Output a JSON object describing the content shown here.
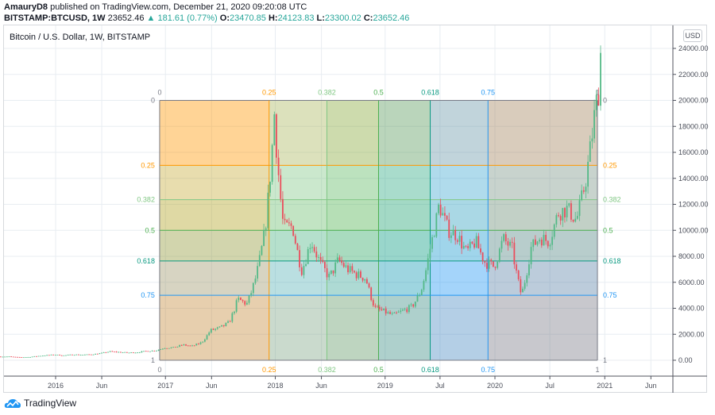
{
  "header": {
    "author": "AmauryD8",
    "published": "published on TradingView.com, December 21, 2020 09:20:08 UTC",
    "symbol": "BITSTAMP:BTCUSD, 1W",
    "last": "23652.46",
    "change": "181.61 (0.77%)",
    "o_label": "O:",
    "o": "23470.85",
    "h_label": "H:",
    "h": "24123.83",
    "l_label": "L:",
    "l": "23300.02",
    "c_label": "C:",
    "c": "23652.46"
  },
  "chart_title": "Bitcoin / U.S. Dollar, 1W, BITSTAMP",
  "currency_button": "USD",
  "brand": "TradingView",
  "colors": {
    "up": "#53b987",
    "down": "#eb4d5c",
    "grid": "#e8edf2"
  },
  "chart_data": {
    "type": "candlestick",
    "title": "Bitcoin / U.S. Dollar, 1W, BITSTAMP",
    "ylim": [
      0,
      24000
    ],
    "y_ticks": [
      "0.00",
      "2000.00",
      "4000.00",
      "6000.00",
      "8000.00",
      "10000.00",
      "12000.00",
      "14000.00",
      "16000.00",
      "18000.00",
      "20000.00",
      "22000.00",
      "24000.00"
    ],
    "x_ticks": [
      {
        "label": "2016",
        "t": 2016.0
      },
      {
        "label": "Jun",
        "t": 2016.42
      },
      {
        "label": "2017",
        "t": 2017.0
      },
      {
        "label": "Jun",
        "t": 2017.42
      },
      {
        "label": "2018",
        "t": 2018.0
      },
      {
        "label": "Jun",
        "t": 2018.42
      },
      {
        "label": "2019",
        "t": 2019.0
      },
      {
        "label": "Jul",
        "t": 2019.5
      },
      {
        "label": "2020",
        "t": 2020.0
      },
      {
        "label": "Jul",
        "t": 2020.5
      },
      {
        "label": "2021",
        "t": 2021.0
      },
      {
        "label": "Jun",
        "t": 2021.42
      }
    ],
    "monthly_closes": [
      [
        "2015-07",
        280
      ],
      [
        "2015-08",
        230
      ],
      [
        "2015-09",
        236
      ],
      [
        "2015-10",
        314
      ],
      [
        "2015-11",
        377
      ],
      [
        "2015-12",
        430
      ],
      [
        "2016-01",
        368
      ],
      [
        "2016-02",
        437
      ],
      [
        "2016-03",
        416
      ],
      [
        "2016-04",
        448
      ],
      [
        "2016-05",
        531
      ],
      [
        "2016-06",
        673
      ],
      [
        "2016-07",
        624
      ],
      [
        "2016-08",
        575
      ],
      [
        "2016-09",
        609
      ],
      [
        "2016-10",
        700
      ],
      [
        "2016-11",
        742
      ],
      [
        "2016-12",
        960
      ],
      [
        "2017-01",
        970
      ],
      [
        "2017-02",
        1190
      ],
      [
        "2017-03",
        1080
      ],
      [
        "2017-04",
        1350
      ],
      [
        "2017-05",
        2300
      ],
      [
        "2017-06",
        2480
      ],
      [
        "2017-07",
        2870
      ],
      [
        "2017-08",
        4700
      ],
      [
        "2017-09",
        4340
      ],
      [
        "2017-10",
        6470
      ],
      [
        "2017-11",
        10200
      ],
      [
        "2017-12",
        19000
      ],
      [
        "2018-01",
        10200
      ],
      [
        "2018-02",
        10300
      ],
      [
        "2018-03",
        6900
      ],
      [
        "2018-04",
        9240
      ],
      [
        "2018-05",
        7500
      ],
      [
        "2018-06",
        6390
      ],
      [
        "2018-07",
        7730
      ],
      [
        "2018-08",
        7000
      ],
      [
        "2018-09",
        6600
      ],
      [
        "2018-10",
        6300
      ],
      [
        "2018-11",
        4000
      ],
      [
        "2018-12",
        3740
      ],
      [
        "2019-01",
        3450
      ],
      [
        "2019-02",
        3800
      ],
      [
        "2019-03",
        4100
      ],
      [
        "2019-04",
        5300
      ],
      [
        "2019-05",
        8570
      ],
      [
        "2019-06",
        12000
      ],
      [
        "2019-07",
        10000
      ],
      [
        "2019-08",
        9600
      ],
      [
        "2019-09",
        8300
      ],
      [
        "2019-10",
        9150
      ],
      [
        "2019-11",
        7550
      ],
      [
        "2019-12",
        7200
      ],
      [
        "2020-01",
        9350
      ],
      [
        "2020-02",
        8550
      ],
      [
        "2020-03",
        5000
      ],
      [
        "2020-04",
        8630
      ],
      [
        "2020-05",
        9450
      ],
      [
        "2020-06",
        9140
      ],
      [
        "2020-07",
        11350
      ],
      [
        "2020-08",
        11650
      ],
      [
        "2020-09",
        10780
      ],
      [
        "2020-10",
        13800
      ],
      [
        "2020-11",
        19000
      ],
      [
        "2020-12",
        23652
      ]
    ],
    "fib_time_zone": {
      "start": "2016-12-12",
      "end": "2020-12-07",
      "price_top": 20000,
      "price_bottom": 0,
      "levels": [
        {
          "value": 0,
          "label": "0",
          "color": "#787b86"
        },
        {
          "value": 0.25,
          "label": "0.25",
          "color": "#ff9800"
        },
        {
          "value": 0.382,
          "label": "0.382",
          "color": "#81c784"
        },
        {
          "value": 0.5,
          "label": "0.5",
          "color": "#4caf50"
        },
        {
          "value": 0.618,
          "label": "0.618",
          "color": "#089981"
        },
        {
          "value": 0.75,
          "label": "0.75",
          "color": "#2196f3"
        },
        {
          "value": 1,
          "label": "1",
          "color": "#787b86"
        }
      ]
    }
  }
}
